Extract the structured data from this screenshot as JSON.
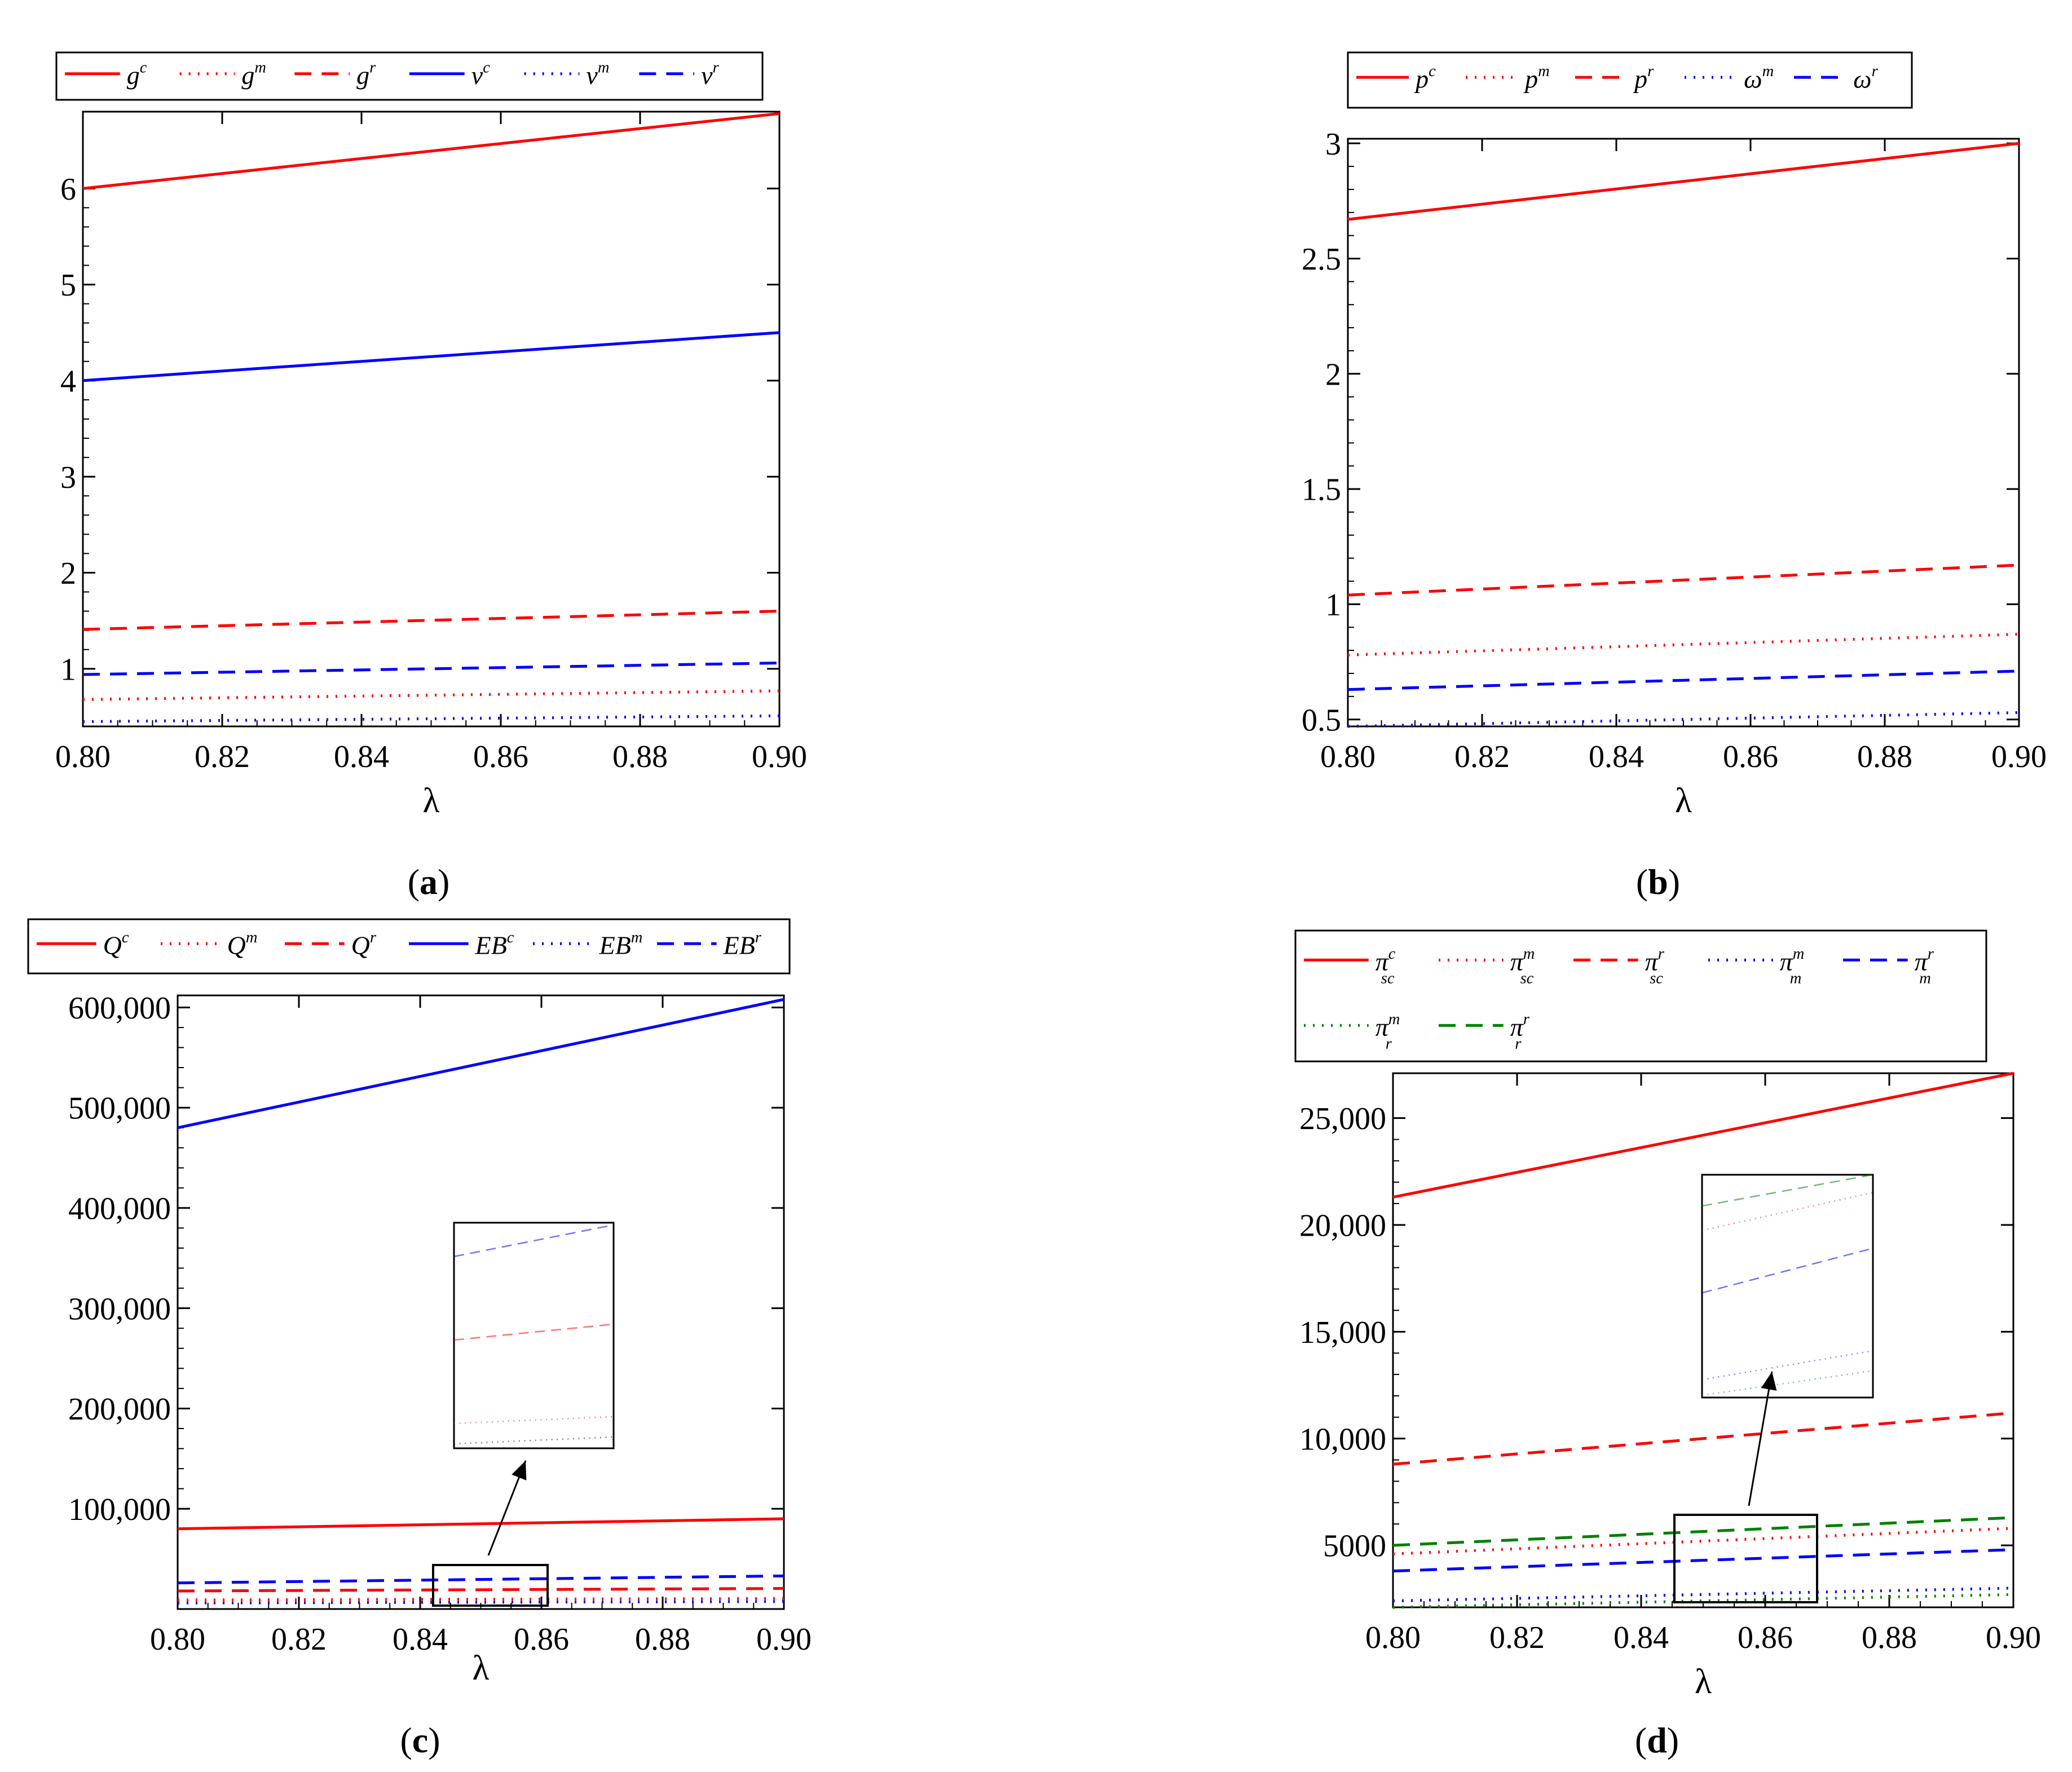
{
  "chart_data": [
    {
      "panel": "a",
      "type": "line",
      "caption": "(a)",
      "caption_letter": "a",
      "xlabel": "λ",
      "ylabel": "",
      "xlim": [
        0.8,
        0.9
      ],
      "ylim": [
        0.4,
        6.8
      ],
      "x_ticks": [
        0.8,
        0.82,
        0.84,
        0.86,
        0.88,
        0.9
      ],
      "x_tick_labels": [
        "0.80",
        "0.82",
        "0.84",
        "0.86",
        "0.88",
        "0.90"
      ],
      "y_ticks": [
        1,
        2,
        3,
        4,
        5,
        6
      ],
      "y_tick_labels": [
        "1",
        "2",
        "3",
        "4",
        "5",
        "6"
      ],
      "legend_position": "top",
      "series": [
        {
          "name": "g",
          "sup": "c",
          "sub": "",
          "color": "#ff0000",
          "dash": "solid",
          "x": [
            0.8,
            0.9
          ],
          "values": [
            6.0,
            6.78
          ]
        },
        {
          "name": "g",
          "sup": "m",
          "sub": "",
          "color": "#ff0000",
          "dash": "dot",
          "x": [
            0.8,
            0.9
          ],
          "values": [
            0.68,
            0.77
          ]
        },
        {
          "name": "g",
          "sup": "r",
          "sub": "",
          "color": "#ff0000",
          "dash": "dash",
          "x": [
            0.8,
            0.9
          ],
          "values": [
            1.41,
            1.6
          ]
        },
        {
          "name": "v",
          "sup": "c",
          "sub": "",
          "color": "#0000ff",
          "dash": "solid",
          "x": [
            0.8,
            0.9
          ],
          "values": [
            4.0,
            4.5
          ]
        },
        {
          "name": "v",
          "sup": "m",
          "sub": "",
          "color": "#0000ff",
          "dash": "dot",
          "x": [
            0.8,
            0.9
          ],
          "values": [
            0.45,
            0.51
          ]
        },
        {
          "name": "v",
          "sup": "r",
          "sub": "",
          "color": "#0000ff",
          "dash": "dash",
          "x": [
            0.8,
            0.9
          ],
          "values": [
            0.94,
            1.06
          ]
        }
      ]
    },
    {
      "panel": "b",
      "type": "line",
      "caption": "(b)",
      "caption_letter": "b",
      "xlabel": "λ",
      "ylabel": "",
      "xlim": [
        0.8,
        0.9
      ],
      "ylim": [
        0.47,
        3.02
      ],
      "x_ticks": [
        0.8,
        0.82,
        0.84,
        0.86,
        0.88,
        0.9
      ],
      "x_tick_labels": [
        "0.80",
        "0.82",
        "0.84",
        "0.86",
        "0.88",
        "0.90"
      ],
      "y_ticks": [
        0.5,
        1,
        1.5,
        2,
        2.5,
        3
      ],
      "y_tick_labels": [
        "0.5",
        "1",
        "1.5",
        "2",
        "2.5",
        "3"
      ],
      "legend_position": "top",
      "series": [
        {
          "name": "p",
          "sup": "c",
          "sub": "",
          "color": "#ff0000",
          "dash": "solid",
          "x": [
            0.8,
            0.9
          ],
          "values": [
            2.67,
            3.0
          ]
        },
        {
          "name": "p",
          "sup": "m",
          "sub": "",
          "color": "#ff0000",
          "dash": "dot",
          "x": [
            0.8,
            0.9
          ],
          "values": [
            0.78,
            0.87
          ]
        },
        {
          "name": "p",
          "sup": "r",
          "sub": "",
          "color": "#ff0000",
          "dash": "dash",
          "x": [
            0.8,
            0.9
          ],
          "values": [
            1.04,
            1.17
          ]
        },
        {
          "name": "ω",
          "sup": "m",
          "sub": "",
          "color": "#0000ff",
          "dash": "dot",
          "x": [
            0.8,
            0.9
          ],
          "values": [
            0.47,
            0.53
          ]
        },
        {
          "name": "ω",
          "sup": "r",
          "sub": "",
          "color": "#0000ff",
          "dash": "dash",
          "x": [
            0.8,
            0.9
          ],
          "values": [
            0.63,
            0.71
          ]
        }
      ]
    },
    {
      "panel": "c",
      "type": "line",
      "caption": "(c)",
      "caption_letter": "c",
      "xlabel": "λ",
      "ylabel": "",
      "xlim": [
        0.8,
        0.9
      ],
      "ylim": [
        0,
        612000
      ],
      "x_ticks": [
        0.8,
        0.82,
        0.84,
        0.86,
        0.88,
        0.9
      ],
      "x_tick_labels": [
        "0.80",
        "0.82",
        "0.84",
        "0.86",
        "0.88",
        "0.90"
      ],
      "y_ticks": [
        100000,
        200000,
        300000,
        400000,
        500000,
        600000
      ],
      "y_tick_labels": [
        "100,000",
        "200,000",
        "300,000",
        "400,000",
        "500,000",
        "600,000"
      ],
      "legend_position": "top",
      "series": [
        {
          "name": "Q",
          "sup": "c",
          "sub": "",
          "color": "#ff0000",
          "dash": "solid",
          "x": [
            0.8,
            0.9
          ],
          "values": [
            80000,
            90000
          ]
        },
        {
          "name": "Q",
          "sup": "m",
          "sub": "",
          "color": "#ff0000",
          "dash": "dot",
          "x": [
            0.8,
            0.9
          ],
          "values": [
            9000,
            10500
          ]
        },
        {
          "name": "Q",
          "sup": "r",
          "sub": "",
          "color": "#ff0000",
          "dash": "dash",
          "x": [
            0.8,
            0.9
          ],
          "values": [
            18000,
            20500
          ]
        },
        {
          "name": "EB",
          "sup": "c",
          "sub": "",
          "color": "#0000ff",
          "dash": "solid",
          "x": [
            0.8,
            0.9
          ],
          "values": [
            480000,
            608000
          ]
        },
        {
          "name": "EB",
          "sup": "m",
          "sub": "",
          "color": "#0000ff",
          "dash": "dot",
          "x": [
            0.8,
            0.9
          ],
          "values": [
            6000,
            7500
          ]
        },
        {
          "name": "EB",
          "sup": "r",
          "sub": "",
          "color": "#0000ff",
          "dash": "dash",
          "x": [
            0.8,
            0.9
          ],
          "values": [
            26000,
            33000
          ]
        }
      ],
      "inset": {
        "zoom_x": [
          0.843,
          0.862
        ],
        "zoom_y": [
          2000,
          42000
        ],
        "series": [
          {
            "color": "#0000ff",
            "dash": "dash",
            "values": [
              0.85,
              0.99
            ]
          },
          {
            "color": "#ff0000",
            "dash": "dash",
            "values": [
              0.48,
              0.55
            ]
          },
          {
            "color": "#ff0000",
            "dash": "dot",
            "values": [
              0.11,
              0.14
            ]
          },
          {
            "color": "#000000",
            "dash": "dot",
            "values": [
              0.02,
              0.05
            ]
          }
        ]
      }
    },
    {
      "panel": "d",
      "type": "line",
      "caption": "(d)",
      "caption_letter": "d",
      "xlabel": "λ",
      "ylabel": "",
      "xlim": [
        0.8,
        0.9
      ],
      "ylim": [
        2100,
        27100
      ],
      "x_ticks": [
        0.8,
        0.82,
        0.84,
        0.86,
        0.88,
        0.9
      ],
      "x_tick_labels": [
        "0.80",
        "0.82",
        "0.84",
        "0.86",
        "0.88",
        "0.90"
      ],
      "y_ticks": [
        5000,
        10000,
        15000,
        20000,
        25000
      ],
      "y_tick_labels": [
        "5000",
        "10,000",
        "15,000",
        "20,000",
        "25,000"
      ],
      "legend_position": "top",
      "series": [
        {
          "name": "π",
          "sup": "c",
          "sub": "sc",
          "color": "#ff0000",
          "dash": "solid",
          "x": [
            0.8,
            0.9
          ],
          "values": [
            21300,
            27100
          ]
        },
        {
          "name": "π",
          "sup": "m",
          "sub": "sc",
          "color": "#ff0000",
          "dash": "dot",
          "x": [
            0.8,
            0.9
          ],
          "values": [
            4600,
            5800
          ]
        },
        {
          "name": "π",
          "sup": "r",
          "sub": "sc",
          "color": "#ff0000",
          "dash": "dash",
          "x": [
            0.8,
            0.9
          ],
          "values": [
            8800,
            11200
          ]
        },
        {
          "name": "π",
          "sup": "m",
          "sub": "m",
          "color": "#0000ff",
          "dash": "dot",
          "x": [
            0.8,
            0.9
          ],
          "values": [
            2400,
            3000
          ]
        },
        {
          "name": "π",
          "sup": "r",
          "sub": "m",
          "color": "#0000ff",
          "dash": "dash",
          "x": [
            0.8,
            0.9
          ],
          "values": [
            3800,
            4800
          ]
        },
        {
          "name": "π",
          "sup": "m",
          "sub": "r",
          "color": "#008000",
          "dash": "dot",
          "x": [
            0.8,
            0.9
          ],
          "values": [
            2100,
            2700
          ]
        },
        {
          "name": "π",
          "sup": "r",
          "sub": "r",
          "color": "#008000",
          "dash": "dash",
          "x": [
            0.8,
            0.9
          ],
          "values": [
            5000,
            6300
          ]
        }
      ],
      "inset": {
        "zoom_x": [
          0.846,
          0.868
        ],
        "zoom_y": [
          2000,
          6300
        ],
        "series": [
          {
            "color": "#008000",
            "dash": "dash",
            "values": [
              0.86,
              1.0
            ]
          },
          {
            "color": "#ff0000",
            "dash": "dot",
            "values": [
              0.75,
              0.92
            ]
          },
          {
            "color": "#0000ff",
            "dash": "dash",
            "values": [
              0.47,
              0.67
            ]
          },
          {
            "color": "#0000ff",
            "dash": "dot",
            "values": [
              0.08,
              0.21
            ]
          },
          {
            "color": "#008000",
            "dash": "dot",
            "values": [
              0.01,
              0.12
            ]
          }
        ]
      }
    }
  ]
}
